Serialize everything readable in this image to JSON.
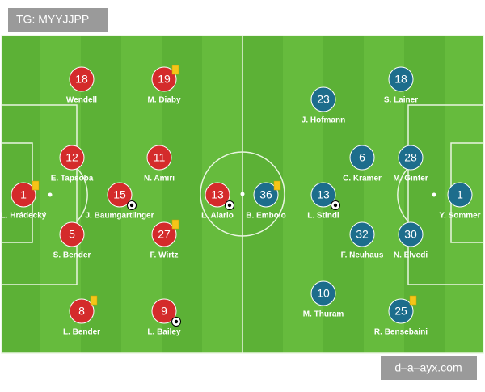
{
  "watermark": "TG: MYYJJPP",
  "footer": "d–a–ayx.com",
  "home": [
    {
      "number": 18,
      "name": "Wendell"
    },
    {
      "number": 19,
      "name": "M. Diaby"
    },
    {
      "number": 12,
      "name": "E. Tapsoba"
    },
    {
      "number": 11,
      "name": "N. Amiri"
    },
    {
      "number": 1,
      "name": "L. Hrádecký"
    },
    {
      "number": 15,
      "name": "J. Baumgartlinger"
    },
    {
      "number": 13,
      "name": "L. Alario"
    },
    {
      "number": 5,
      "name": "S. Bender"
    },
    {
      "number": 27,
      "name": "F. Wirtz"
    },
    {
      "number": 8,
      "name": "L. Bender"
    },
    {
      "number": 9,
      "name": "L. Bailey"
    }
  ],
  "away": [
    {
      "number": 23,
      "name": "J. Hofmann"
    },
    {
      "number": 18,
      "name": "S. Lainer"
    },
    {
      "number": 6,
      "name": "C. Kramer"
    },
    {
      "number": 28,
      "name": "M. Ginter"
    },
    {
      "number": 36,
      "name": "B. Embolo"
    },
    {
      "number": 13,
      "name": "L. Stindl"
    },
    {
      "number": 1,
      "name": "Y. Sommer"
    },
    {
      "number": 32,
      "name": "F. Neuhaus"
    },
    {
      "number": 30,
      "name": "N. Elvedi"
    },
    {
      "number": 10,
      "name": "M. Thuram"
    },
    {
      "number": 25,
      "name": "R. Bensebaini"
    }
  ]
}
